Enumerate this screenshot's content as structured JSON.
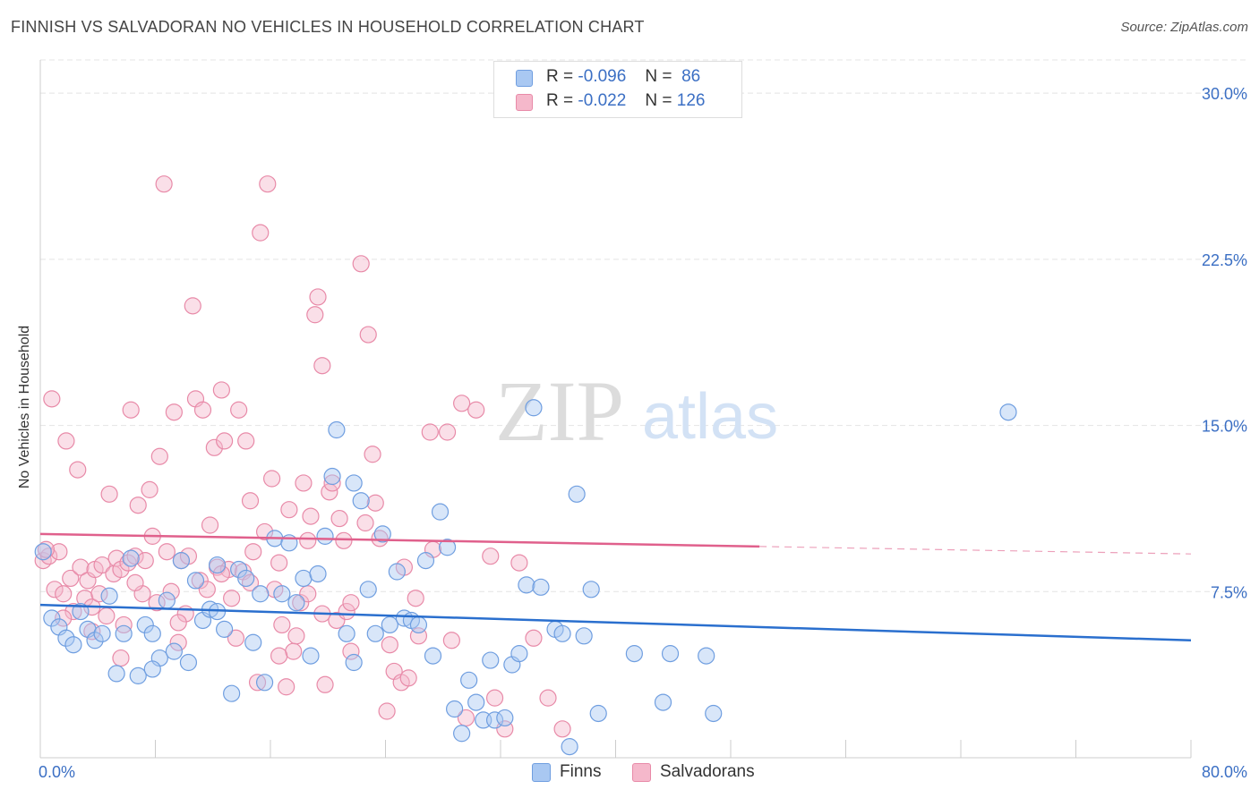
{
  "header": {
    "title": "FINNISH VS SALVADORAN NO VEHICLES IN HOUSEHOLD CORRELATION CHART",
    "source": "Source: ZipAtlas.com"
  },
  "legend": {
    "finns": {
      "r_label": "R =",
      "r_value": "-0.096",
      "n_label": "N =",
      "n_value": "86"
    },
    "salvadorans": {
      "r_label": "R =",
      "r_value": "-0.022",
      "n_label": "N =",
      "n_value": "126"
    }
  },
  "watermark": {
    "zip": "ZIP",
    "atlas": "atlas"
  },
  "colors": {
    "finns_fill": "#a9c8f2",
    "finns_stroke": "#6f9ee0",
    "finns_line": "#2a6fce",
    "salv_fill": "#f5b8cb",
    "salv_stroke": "#e88aa8",
    "salv_line": "#e0608c",
    "tick_label": "#3b6fc4"
  },
  "chart_data": {
    "type": "scatter",
    "title": "FINNISH VS SALVADORAN NO VEHICLES IN HOUSEHOLD CORRELATION CHART",
    "ylabel": "No Vehicles in Household",
    "xlabel": "",
    "xlim": [
      0,
      80
    ],
    "ylim": [
      0,
      31.5
    ],
    "x_tick_labels": [
      "0.0%",
      "80.0%"
    ],
    "y_ticks": [
      {
        "value": 7.5,
        "label": "7.5%"
      },
      {
        "value": 15.0,
        "label": "15.0%"
      },
      {
        "value": 22.5,
        "label": "22.5%"
      },
      {
        "value": 30.0,
        "label": "30.0%"
      }
    ],
    "legend_position": "top-center",
    "grid": true,
    "series": [
      {
        "name": "Finns",
        "trend": {
          "x": [
            0,
            80
          ],
          "y": [
            6.9,
            5.3
          ],
          "dashed_from": null
        },
        "points": [
          [
            0.2,
            9.3
          ],
          [
            0.8,
            6.3
          ],
          [
            1.3,
            5.9
          ],
          [
            1.8,
            5.4
          ],
          [
            2.3,
            5.1
          ],
          [
            2.8,
            6.6
          ],
          [
            3.3,
            5.8
          ],
          [
            3.8,
            5.3
          ],
          [
            4.3,
            5.6
          ],
          [
            4.8,
            7.3
          ],
          [
            5.3,
            3.8
          ],
          [
            5.8,
            5.6
          ],
          [
            6.3,
            9.0
          ],
          [
            6.8,
            3.7
          ],
          [
            7.3,
            6.0
          ],
          [
            7.8,
            5.6
          ],
          [
            8.3,
            4.5
          ],
          [
            8.8,
            7.1
          ],
          [
            9.3,
            4.8
          ],
          [
            9.8,
            8.9
          ],
          [
            10.3,
            4.3
          ],
          [
            10.8,
            8.0
          ],
          [
            11.3,
            6.2
          ],
          [
            11.8,
            6.7
          ],
          [
            12.3,
            8.7
          ],
          [
            12.8,
            5.8
          ],
          [
            13.3,
            2.9
          ],
          [
            13.8,
            8.5
          ],
          [
            14.3,
            8.1
          ],
          [
            14.8,
            5.2
          ],
          [
            15.3,
            7.4
          ],
          [
            15.6,
            3.4
          ],
          [
            16.3,
            9.9
          ],
          [
            16.8,
            7.4
          ],
          [
            17.3,
            9.7
          ],
          [
            17.8,
            7.0
          ],
          [
            18.3,
            8.1
          ],
          [
            18.8,
            4.6
          ],
          [
            19.3,
            8.3
          ],
          [
            19.8,
            10.0
          ],
          [
            20.3,
            12.7
          ],
          [
            20.6,
            14.8
          ],
          [
            21.3,
            5.6
          ],
          [
            21.8,
            12.4
          ],
          [
            22.3,
            11.6
          ],
          [
            22.8,
            7.6
          ],
          [
            23.3,
            5.6
          ],
          [
            23.8,
            10.1
          ],
          [
            24.3,
            6.0
          ],
          [
            24.8,
            8.4
          ],
          [
            25.3,
            6.3
          ],
          [
            25.8,
            6.2
          ],
          [
            26.3,
            6.0
          ],
          [
            26.8,
            8.9
          ],
          [
            27.3,
            4.6
          ],
          [
            27.8,
            11.1
          ],
          [
            28.3,
            9.5
          ],
          [
            28.8,
            2.2
          ],
          [
            29.3,
            1.1
          ],
          [
            29.8,
            3.5
          ],
          [
            30.3,
            2.5
          ],
          [
            30.8,
            1.7
          ],
          [
            31.3,
            4.4
          ],
          [
            31.6,
            1.7
          ],
          [
            32.3,
            1.8
          ],
          [
            32.8,
            4.2
          ],
          [
            33.3,
            4.7
          ],
          [
            33.8,
            7.8
          ],
          [
            34.3,
            15.8
          ],
          [
            34.8,
            7.7
          ],
          [
            35.8,
            5.8
          ],
          [
            36.3,
            5.6
          ],
          [
            36.8,
            0.5
          ],
          [
            37.3,
            11.9
          ],
          [
            37.8,
            5.5
          ],
          [
            38.3,
            7.6
          ],
          [
            38.8,
            2.0
          ],
          [
            41.3,
            4.7
          ],
          [
            43.3,
            2.5
          ],
          [
            43.8,
            4.7
          ],
          [
            46.3,
            4.6
          ],
          [
            46.8,
            2.0
          ],
          [
            67.3,
            15.6
          ],
          [
            7.8,
            4.0
          ],
          [
            12.3,
            6.6
          ],
          [
            21.8,
            4.3
          ]
        ]
      },
      {
        "name": "Salvadorans",
        "trend": {
          "x": [
            0,
            80
          ],
          "y": [
            10.1,
            9.2
          ],
          "dashed_from": 50
        },
        "points": [
          [
            0.2,
            8.9
          ],
          [
            0.6,
            9.1
          ],
          [
            0.8,
            16.2
          ],
          [
            1.0,
            7.6
          ],
          [
            1.3,
            9.3
          ],
          [
            1.6,
            7.4
          ],
          [
            1.8,
            14.3
          ],
          [
            2.1,
            8.1
          ],
          [
            2.3,
            6.6
          ],
          [
            2.6,
            13.0
          ],
          [
            2.8,
            8.6
          ],
          [
            3.1,
            7.2
          ],
          [
            3.3,
            8.0
          ],
          [
            3.6,
            6.8
          ],
          [
            3.8,
            8.5
          ],
          [
            4.1,
            7.4
          ],
          [
            4.3,
            8.7
          ],
          [
            4.6,
            6.4
          ],
          [
            4.8,
            11.9
          ],
          [
            5.1,
            8.3
          ],
          [
            5.3,
            9.0
          ],
          [
            5.6,
            8.5
          ],
          [
            5.8,
            6.0
          ],
          [
            6.1,
            8.8
          ],
          [
            6.3,
            15.7
          ],
          [
            6.6,
            9.1
          ],
          [
            6.8,
            11.4
          ],
          [
            7.1,
            7.4
          ],
          [
            7.3,
            8.9
          ],
          [
            7.6,
            12.1
          ],
          [
            7.8,
            10.0
          ],
          [
            8.1,
            7.0
          ],
          [
            8.3,
            13.6
          ],
          [
            8.6,
            25.9
          ],
          [
            8.8,
            9.3
          ],
          [
            9.1,
            7.5
          ],
          [
            9.3,
            15.6
          ],
          [
            9.6,
            5.2
          ],
          [
            9.8,
            8.9
          ],
          [
            10.1,
            6.5
          ],
          [
            10.3,
            9.1
          ],
          [
            10.6,
            20.4
          ],
          [
            10.8,
            16.2
          ],
          [
            11.1,
            8.0
          ],
          [
            11.3,
            15.7
          ],
          [
            11.6,
            7.6
          ],
          [
            11.8,
            10.5
          ],
          [
            12.1,
            14.0
          ],
          [
            12.3,
            8.6
          ],
          [
            12.6,
            16.6
          ],
          [
            12.8,
            14.3
          ],
          [
            13.1,
            8.5
          ],
          [
            13.3,
            7.2
          ],
          [
            13.6,
            5.4
          ],
          [
            13.8,
            15.7
          ],
          [
            14.1,
            8.4
          ],
          [
            14.3,
            14.3
          ],
          [
            14.6,
            11.6
          ],
          [
            14.8,
            9.3
          ],
          [
            15.1,
            3.4
          ],
          [
            15.3,
            23.7
          ],
          [
            15.6,
            10.2
          ],
          [
            15.8,
            25.9
          ],
          [
            16.1,
            12.6
          ],
          [
            16.3,
            7.6
          ],
          [
            16.6,
            8.8
          ],
          [
            16.8,
            6.0
          ],
          [
            17.1,
            3.2
          ],
          [
            17.3,
            11.2
          ],
          [
            17.6,
            4.8
          ],
          [
            17.8,
            5.5
          ],
          [
            18.1,
            7.0
          ],
          [
            18.3,
            12.4
          ],
          [
            18.6,
            9.8
          ],
          [
            18.8,
            10.9
          ],
          [
            19.1,
            20.0
          ],
          [
            19.3,
            20.8
          ],
          [
            19.6,
            17.7
          ],
          [
            19.8,
            3.3
          ],
          [
            20.1,
            12.0
          ],
          [
            20.3,
            12.4
          ],
          [
            20.6,
            6.2
          ],
          [
            20.8,
            10.8
          ],
          [
            21.1,
            9.8
          ],
          [
            21.3,
            6.6
          ],
          [
            21.6,
            7.0
          ],
          [
            22.3,
            22.3
          ],
          [
            22.6,
            10.6
          ],
          [
            22.8,
            19.1
          ],
          [
            23.1,
            13.7
          ],
          [
            23.3,
            11.5
          ],
          [
            23.6,
            9.9
          ],
          [
            24.1,
            2.1
          ],
          [
            24.3,
            5.1
          ],
          [
            24.6,
            3.9
          ],
          [
            25.1,
            3.4
          ],
          [
            25.3,
            8.6
          ],
          [
            25.6,
            3.6
          ],
          [
            26.1,
            7.2
          ],
          [
            26.3,
            5.5
          ],
          [
            27.1,
            14.7
          ],
          [
            27.3,
            9.4
          ],
          [
            28.3,
            14.7
          ],
          [
            28.6,
            5.3
          ],
          [
            29.3,
            16.0
          ],
          [
            29.6,
            1.8
          ],
          [
            30.3,
            15.7
          ],
          [
            31.3,
            9.1
          ],
          [
            31.6,
            2.7
          ],
          [
            32.3,
            1.3
          ],
          [
            33.3,
            8.8
          ],
          [
            34.3,
            5.4
          ],
          [
            35.3,
            2.7
          ],
          [
            36.3,
            1.3
          ],
          [
            9.6,
            6.1
          ],
          [
            12.6,
            8.3
          ],
          [
            14.6,
            7.9
          ],
          [
            16.6,
            4.6
          ],
          [
            18.6,
            7.4
          ],
          [
            19.6,
            6.5
          ],
          [
            21.6,
            4.8
          ],
          [
            6.6,
            7.9
          ],
          [
            3.6,
            5.7
          ],
          [
            5.6,
            4.5
          ],
          [
            1.6,
            6.3
          ],
          [
            0.4,
            9.4
          ]
        ]
      }
    ]
  },
  "bottom_legend": {
    "finns": "Finns",
    "salvadorans": "Salvadorans"
  }
}
